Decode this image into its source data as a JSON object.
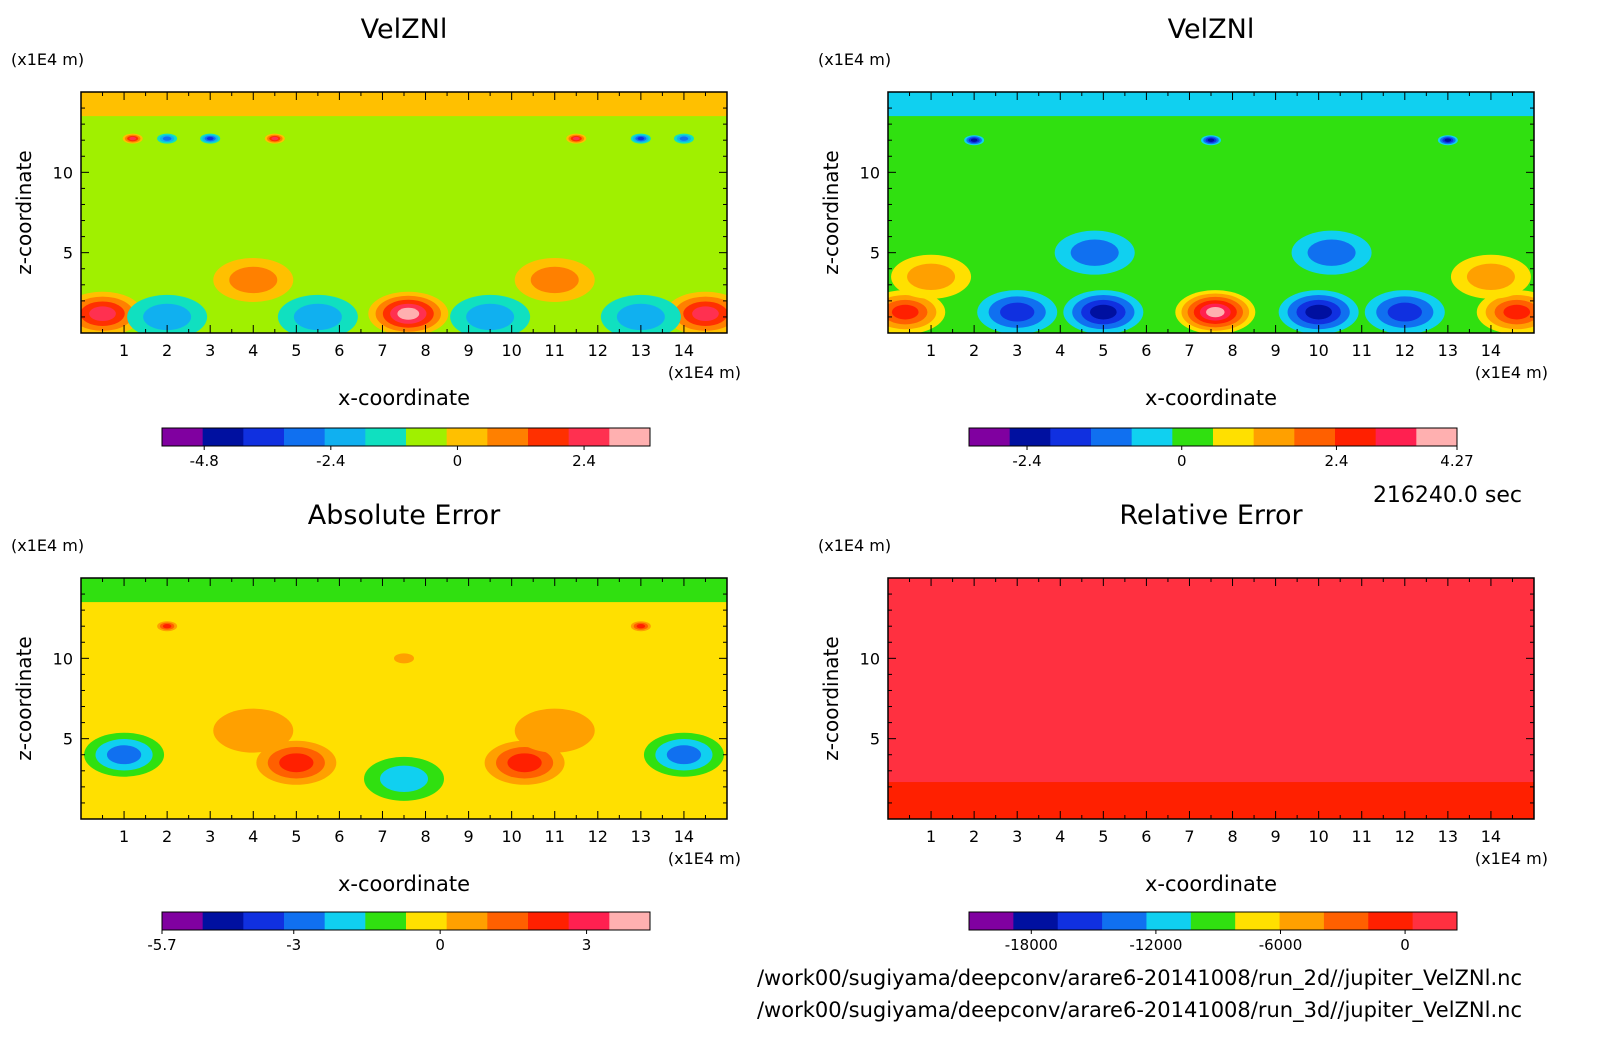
{
  "time_label": "216240.0 sec",
  "files": [
    "/work00/sugiyama/deepconv/arare6-20141008/run_2d//jupiter_VelZNl.nc",
    "/work00/sugiyama/deepconv/arare6-20141008/run_3d//jupiter_VelZNl.nc"
  ],
  "chart_data": [
    {
      "type": "heatmap",
      "title": "VelZNl",
      "xlabel": "x-coordinate",
      "ylabel": "z-coordinate",
      "x_unit": "(x1E4 m)",
      "y_unit": "(x1E4 m)",
      "xlim": [
        0,
        15
      ],
      "ylim": [
        0,
        15
      ],
      "x_ticks": [
        1,
        2,
        3,
        4,
        5,
        6,
        7,
        8,
        9,
        10,
        11,
        12,
        13,
        14
      ],
      "y_ticks": [
        5,
        10
      ],
      "colorbar": {
        "colors": [
          "#8000a0",
          "#0010a0",
          "#1030e0",
          "#1070f0",
          "#10b0f0",
          "#10e0c0",
          "#a0f000",
          "#ffc000",
          "#ff8000",
          "#ff3000",
          "#ff3050",
          "#ffb0b0"
        ],
        "tick_labels": [
          "-4.8",
          "-2.4",
          "0",
          "2.4"
        ],
        "tick_values": [
          -4.8,
          -2.4,
          0,
          2.4
        ],
        "range": [
          -5.6,
          3.65
        ]
      },
      "features": [
        {
          "x": 0.5,
          "z": 1.2,
          "level": 10
        },
        {
          "x": 7.6,
          "z": 1.2,
          "level": 11
        },
        {
          "x": 14.5,
          "z": 1.2,
          "level": 10
        },
        {
          "x": 4.0,
          "z": 3.3,
          "level": 8
        },
        {
          "x": 11.0,
          "z": 3.3,
          "level": 8
        },
        {
          "x": 2.0,
          "z": 1.0,
          "level": 4
        },
        {
          "x": 5.5,
          "z": 1.0,
          "level": 4
        },
        {
          "x": 9.5,
          "z": 1.0,
          "level": 4
        },
        {
          "x": 13.0,
          "z": 1.0,
          "level": 4
        },
        {
          "x": 1.2,
          "z": 12.1,
          "level": 10
        },
        {
          "x": 2.0,
          "z": 12.1,
          "level": 3
        },
        {
          "x": 3.0,
          "z": 12.1,
          "level": 2
        },
        {
          "x": 4.5,
          "z": 12.1,
          "level": 10
        },
        {
          "x": 11.5,
          "z": 12.1,
          "level": 10
        },
        {
          "x": 13.0,
          "z": 12.1,
          "level": 2
        },
        {
          "x": 14.0,
          "z": 12.1,
          "level": 3
        }
      ],
      "background_level": 6
    },
    {
      "type": "heatmap",
      "title": "VelZNl",
      "xlabel": "x-coordinate",
      "ylabel": "z-coordinate",
      "x_unit": "(x1E4 m)",
      "y_unit": "(x1E4 m)",
      "xlim": [
        0,
        15
      ],
      "ylim": [
        0,
        15
      ],
      "x_ticks": [
        1,
        2,
        3,
        4,
        5,
        6,
        7,
        8,
        9,
        10,
        11,
        12,
        13,
        14
      ],
      "y_ticks": [
        5,
        10
      ],
      "colorbar": {
        "colors": [
          "#8000a0",
          "#0010a0",
          "#1030e0",
          "#1070f0",
          "#10d0f0",
          "#30e010",
          "#ffe000",
          "#ffa000",
          "#ff6000",
          "#ff2000",
          "#ff2050",
          "#ffb0b0"
        ],
        "tick_labels": [
          "-2.4",
          "0",
          "2.4",
          "4.27"
        ],
        "tick_values": [
          -2.4,
          0,
          2.4,
          4.27
        ],
        "range": [
          -3.3,
          4.27
        ]
      },
      "features": [
        {
          "x": 0.4,
          "z": 1.3,
          "level": 9
        },
        {
          "x": 7.6,
          "z": 1.3,
          "level": 11
        },
        {
          "x": 14.6,
          "z": 1.3,
          "level": 9
        },
        {
          "x": 1.0,
          "z": 3.5,
          "level": 7
        },
        {
          "x": 14.0,
          "z": 3.5,
          "level": 7
        },
        {
          "x": 4.8,
          "z": 5.0,
          "level": 3
        },
        {
          "x": 10.3,
          "z": 5.0,
          "level": 3
        },
        {
          "x": 5.0,
          "z": 1.3,
          "level": 1
        },
        {
          "x": 10.0,
          "z": 1.3,
          "level": 1
        },
        {
          "x": 3.0,
          "z": 1.3,
          "level": 2
        },
        {
          "x": 12.0,
          "z": 1.3,
          "level": 2
        },
        {
          "x": 2.0,
          "z": 12.0,
          "level": 1
        },
        {
          "x": 7.5,
          "z": 12.0,
          "level": 1
        },
        {
          "x": 13.0,
          "z": 12.0,
          "level": 1
        }
      ],
      "background_level": 5
    },
    {
      "type": "heatmap",
      "title": "Absolute Error",
      "xlabel": "x-coordinate",
      "ylabel": "z-coordinate",
      "x_unit": "(x1E4 m)",
      "y_unit": "(x1E4 m)",
      "xlim": [
        0,
        15
      ],
      "ylim": [
        0,
        15
      ],
      "x_ticks": [
        1,
        2,
        3,
        4,
        5,
        6,
        7,
        8,
        9,
        10,
        11,
        12,
        13,
        14
      ],
      "y_ticks": [
        5,
        10
      ],
      "colorbar": {
        "colors": [
          "#8000a0",
          "#0010a0",
          "#1030e0",
          "#1070f0",
          "#10d0f0",
          "#30e010",
          "#ffe000",
          "#ffa000",
          "#ff6000",
          "#ff2000",
          "#ff2050",
          "#ffb0b0"
        ],
        "tick_labels": [
          "-5.7",
          "-3",
          "0",
          "3"
        ],
        "tick_values": [
          -5.7,
          -3,
          0,
          3
        ],
        "range": [
          -5.7,
          4.3
        ]
      },
      "features": [
        {
          "x": 5.0,
          "z": 3.5,
          "level": 9
        },
        {
          "x": 10.3,
          "z": 3.5,
          "level": 9
        },
        {
          "x": 4.0,
          "z": 5.5,
          "level": 7
        },
        {
          "x": 11.0,
          "z": 5.5,
          "level": 7
        },
        {
          "x": 1.0,
          "z": 4.0,
          "level": 3
        },
        {
          "x": 14.0,
          "z": 4.0,
          "level": 3
        },
        {
          "x": 7.5,
          "z": 2.5,
          "level": 4
        },
        {
          "x": 7.5,
          "z": 10.0,
          "level": 7
        },
        {
          "x": 2.0,
          "z": 12.0,
          "level": 9
        },
        {
          "x": 13.0,
          "z": 12.0,
          "level": 9
        }
      ],
      "background_level": 6
    },
    {
      "type": "heatmap",
      "title": "Relative Error",
      "xlabel": "x-coordinate",
      "ylabel": "z-coordinate",
      "x_unit": "(x1E4 m)",
      "y_unit": "(x1E4 m)",
      "xlim": [
        0,
        15
      ],
      "ylim": [
        0,
        15
      ],
      "x_ticks": [
        1,
        2,
        3,
        4,
        5,
        6,
        7,
        8,
        9,
        10,
        11,
        12,
        13,
        14
      ],
      "y_ticks": [
        5,
        10
      ],
      "colorbar": {
        "colors": [
          "#8000a0",
          "#0010a0",
          "#1030e0",
          "#1070f0",
          "#10d0f0",
          "#30e010",
          "#ffe000",
          "#ffa000",
          "#ff6000",
          "#ff2000",
          "#ff3040"
        ],
        "tick_labels": [
          "-18000",
          "-12000",
          "-6000",
          "0"
        ],
        "tick_values": [
          -18000,
          -12000,
          -6000,
          0
        ],
        "range": [
          -21000,
          2500
        ]
      },
      "features": [],
      "background_level": 10
    }
  ]
}
